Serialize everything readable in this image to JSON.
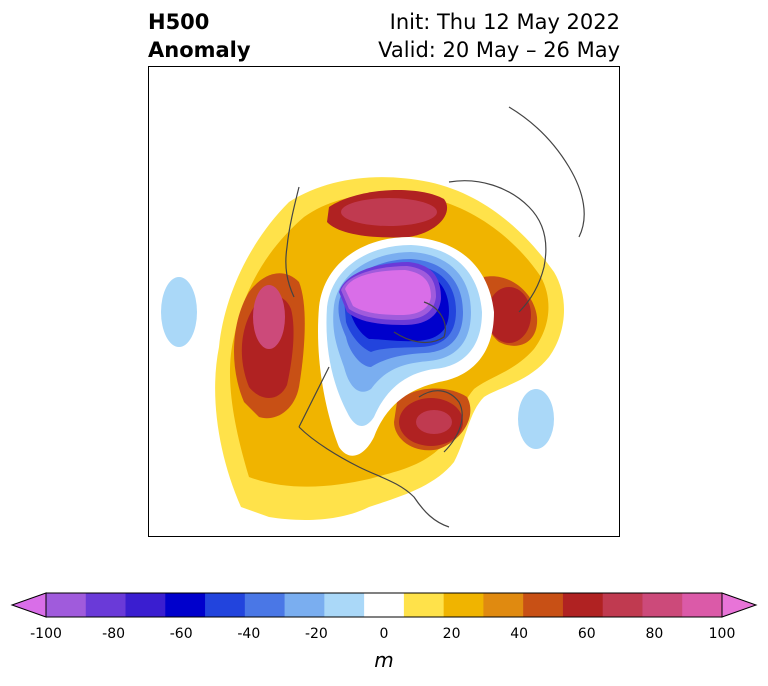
{
  "title": {
    "left_line1": "H500",
    "left_line2": "Anomaly",
    "right_line1": "Init: Thu 12 May 2022",
    "right_line2": "Valid: 20 May – 26 May"
  },
  "colorbar": {
    "unit": "m",
    "ticks": [
      "-100",
      "-80",
      "-60",
      "-40",
      "-20",
      "0",
      "20",
      "40",
      "60",
      "80",
      "100"
    ],
    "colors": [
      "#d96ee8",
      "#a05bdc",
      "#6a3ad8",
      "#3a1ed0",
      "#0000cc",
      "#2244dd",
      "#4a77e6",
      "#7aaef0",
      "#aad8f8",
      "#ffffff",
      "#ffe24a",
      "#f0b400",
      "#e08a10",
      "#c85015",
      "#b02222",
      "#c03a50",
      "#cc4a7a",
      "#db5aa8",
      "#e874d8"
    ]
  },
  "map": {
    "region": "Northern Hemisphere polar stereographic",
    "anomaly_centers": [
      {
        "label": "negative",
        "value": -100,
        "color": "#d96ee8"
      },
      {
        "label": "positive-west",
        "value": 70,
        "color": "#b02222"
      },
      {
        "label": "positive-north",
        "value": 70,
        "color": "#c03a50"
      },
      {
        "label": "positive-east",
        "value": 60,
        "color": "#b02222"
      },
      {
        "label": "positive-ne-america",
        "value": 70,
        "color": "#c03a50"
      }
    ]
  }
}
